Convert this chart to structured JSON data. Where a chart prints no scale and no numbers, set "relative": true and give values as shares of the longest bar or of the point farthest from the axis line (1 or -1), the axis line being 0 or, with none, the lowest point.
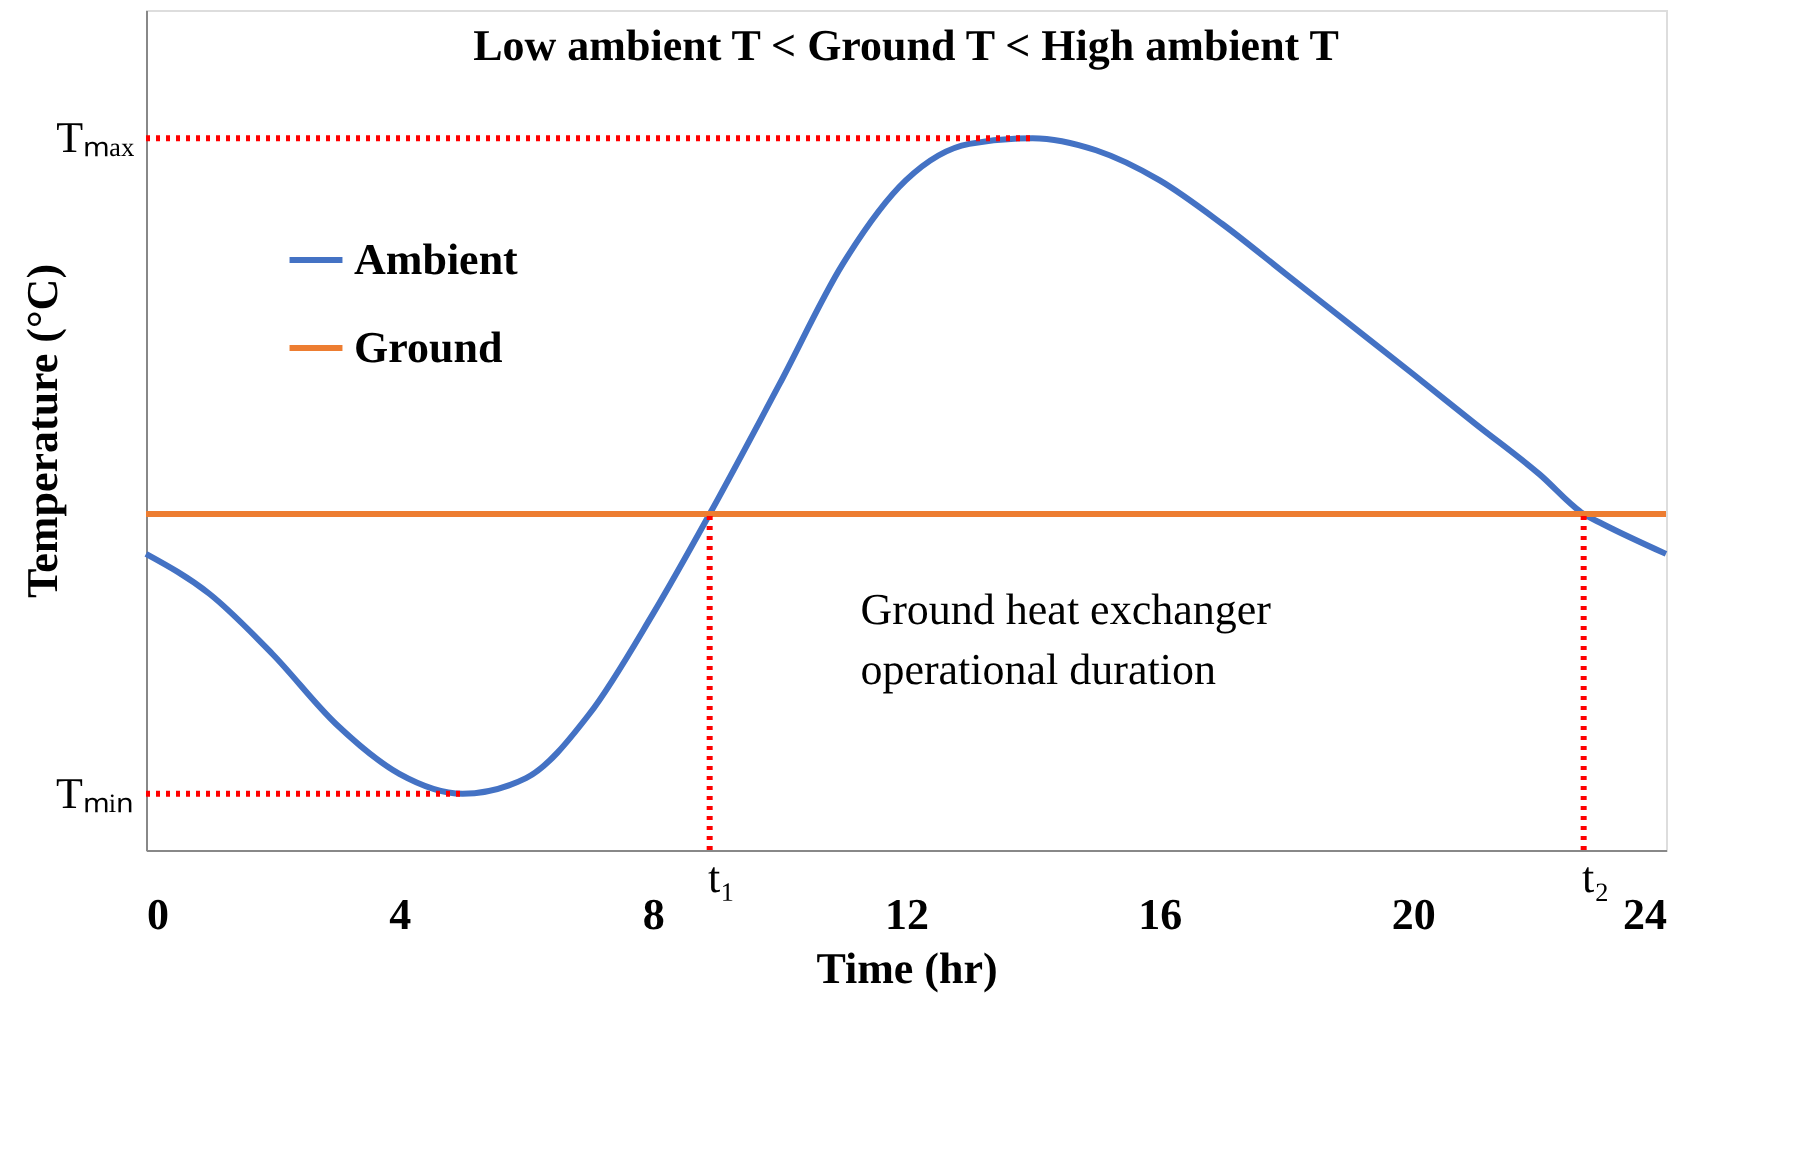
{
  "chart_data": {
    "type": "line",
    "title": "Low ambient T < Ground T < High ambient T",
    "xlabel": "Time (hr)",
    "ylabel": "Temperature (°C)",
    "relative": true,
    "xlim": [
      0,
      24
    ],
    "xticks": [
      0,
      4,
      8,
      12,
      16,
      20,
      24
    ],
    "tick_labels": "x",
    "grid": false,
    "legend": "top left",
    "marker": "none",
    "line_style": "solid",
    "series": [
      {
        "name": "Ambient",
        "color": "#4472c4",
        "x": [
          0,
          1,
          2,
          3,
          4,
          5,
          6,
          7,
          8,
          8.9,
          10,
          11,
          12,
          13,
          14,
          15,
          16,
          17,
          18,
          19,
          20,
          21,
          22,
          22.7,
          23,
          24
        ],
        "values": [
          0.416,
          0.36,
          0.275,
          0.177,
          0.107,
          0.079,
          0.101,
          0.191,
          0.331,
          0.472,
          0.654,
          0.823,
          0.941,
          0.992,
          1,
          0.983,
          0.941,
          0.879,
          0.809,
          0.739,
          0.669,
          0.598,
          0.528,
          0.472,
          0.458,
          0.416
        ]
      },
      {
        "name": "Ground",
        "color": "#ed7d31",
        "x": [
          0,
          24
        ],
        "values": [
          0.472,
          0.472
        ]
      },
      {
        "color": "#ff0000",
        "line_style": "dotted",
        "x": [
          0,
          14
        ],
        "values": [
          1,
          1
        ]
      },
      {
        "color": "#ff0000",
        "line_style": "dotted",
        "x": [
          0,
          5
        ],
        "values": [
          0.079,
          0.079
        ]
      },
      {
        "color": "#ff0000",
        "line_style": "dotted",
        "x": [
          8.9,
          8.9
        ],
        "values": [
          0,
          0.472
        ]
      },
      {
        "color": "#ff0000",
        "line_style": "dotted",
        "x": [
          22.7,
          22.7
        ],
        "values": [
          0,
          0.472
        ]
      }
    ],
    "annotations": [
      {
        "text": "Tₘₐₓ",
        "x": 0,
        "y": 1
      },
      {
        "text": "Tₘᵢₙ",
        "x": 0,
        "y": 0.079
      },
      {
        "text": "t₁",
        "x": 8.9,
        "y": 0
      },
      {
        "text": "t₂",
        "x": 22.7,
        "y": 0
      },
      "Ground heat exchanger\noperational duration"
    ]
  }
}
